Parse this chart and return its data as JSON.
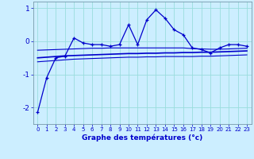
{
  "xlabel": "Graphe des températures (°c)",
  "background_color": "#cceeff",
  "grid_color": "#99dddd",
  "line_color": "#0000cc",
  "x_hours": [
    0,
    1,
    2,
    3,
    4,
    5,
    6,
    7,
    8,
    9,
    10,
    11,
    12,
    13,
    14,
    15,
    16,
    17,
    18,
    19,
    20,
    21,
    22,
    23
  ],
  "temp_main": [
    -2.15,
    -1.1,
    -0.5,
    -0.45,
    0.1,
    -0.05,
    -0.1,
    -0.1,
    -0.15,
    -0.1,
    0.5,
    -0.1,
    0.65,
    0.95,
    0.7,
    0.35,
    0.2,
    -0.2,
    -0.25,
    -0.35,
    -0.2,
    -0.1,
    -0.1,
    -0.15
  ],
  "temp_avg": [
    -0.5,
    -0.48,
    -0.46,
    -0.44,
    -0.43,
    -0.42,
    -0.41,
    -0.4,
    -0.39,
    -0.38,
    -0.37,
    -0.37,
    -0.36,
    -0.36,
    -0.35,
    -0.35,
    -0.34,
    -0.34,
    -0.33,
    -0.33,
    -0.32,
    -0.31,
    -0.3,
    -0.29
  ],
  "temp_upper": [
    -0.27,
    -0.26,
    -0.25,
    -0.24,
    -0.23,
    -0.22,
    -0.21,
    -0.21,
    -0.2,
    -0.2,
    -0.2,
    -0.2,
    -0.2,
    -0.2,
    -0.2,
    -0.2,
    -0.2,
    -0.22,
    -0.23,
    -0.24,
    -0.24,
    -0.23,
    -0.22,
    -0.21
  ],
  "temp_lower": [
    -0.62,
    -0.6,
    -0.58,
    -0.56,
    -0.54,
    -0.53,
    -0.52,
    -0.51,
    -0.5,
    -0.49,
    -0.48,
    -0.48,
    -0.47,
    -0.47,
    -0.46,
    -0.46,
    -0.46,
    -0.46,
    -0.45,
    -0.45,
    -0.44,
    -0.43,
    -0.42,
    -0.41
  ],
  "ylim": [
    -2.5,
    1.2
  ],
  "yticks": [
    -2,
    -1,
    0,
    1
  ],
  "xlim": [
    -0.5,
    23.5
  ],
  "xtick_fontsize": 5.0,
  "ytick_fontsize": 6.5,
  "xlabel_fontsize": 6.5
}
